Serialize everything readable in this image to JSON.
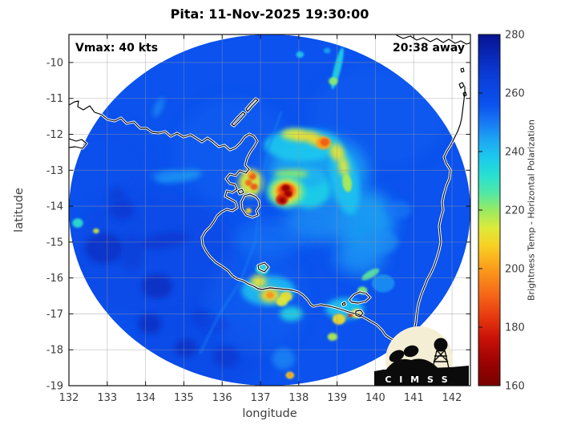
{
  "header": {
    "title": "Pita: 11-Nov-2025 19:30:00"
  },
  "plot": {
    "vmax_label": "Vmax: 40 kts",
    "eta_label": "20:38 away",
    "xlabel": "longitude",
    "ylabel": "latitude"
  },
  "colorbar": {
    "label": "Brightness Temp - Horizontal Polarization",
    "min": 160,
    "max": 280,
    "ticks": [
      160,
      180,
      200,
      220,
      240,
      260,
      280
    ]
  },
  "logo": {
    "text": "C I M S S"
  },
  "chart_data": {
    "type": "heatmap",
    "title": "Pita: 11-Nov-2025 19:30:00",
    "xlabel": "longitude",
    "ylabel": "latitude",
    "units": "K",
    "grid": true,
    "xlim": [
      132.0,
      142.48
    ],
    "ylim": [
      -19.0,
      -9.22
    ],
    "xticks": [
      132,
      133,
      134,
      135,
      136,
      137,
      138,
      139,
      140,
      141,
      142
    ],
    "yticks": [
      -10,
      -11,
      -12,
      -13,
      -14,
      -15,
      -16,
      -17,
      -18,
      -19
    ],
    "colorbar_label": "Brightness Temp - Horizontal Polarization",
    "colormap": [
      [
        160,
        "#7a0101"
      ],
      [
        168,
        "#9c0303"
      ],
      [
        176,
        "#c81007"
      ],
      [
        184,
        "#e93b10"
      ],
      [
        192,
        "#f66d1a"
      ],
      [
        200,
        "#fb9c1a"
      ],
      [
        208,
        "#f8d123"
      ],
      [
        214,
        "#ddea3c"
      ],
      [
        220,
        "#97ea62"
      ],
      [
        226,
        "#4fe8a8"
      ],
      [
        232,
        "#27e0d2"
      ],
      [
        238,
        "#1bc9ee"
      ],
      [
        244,
        "#1da6f3"
      ],
      [
        250,
        "#1878f5"
      ],
      [
        256,
        "#0b52ee"
      ],
      [
        264,
        "#0b41dd"
      ],
      [
        272,
        "#092bbd"
      ],
      [
        280,
        "#06128f"
      ]
    ],
    "base_temp": 256,
    "swath": {
      "center_lon": 137.24,
      "center_lat": -14.11,
      "radius_lon": 5.24,
      "radius_lat": 4.89
    },
    "swath_edge": [
      [
        137.54,
        -11.39
      ],
      [
        137.21,
        -12.39
      ],
      [
        137.04,
        -13.28
      ],
      [
        136.87,
        -14.96
      ],
      [
        136.48,
        -16.08
      ],
      [
        135.89,
        -17.08
      ],
      [
        135.43,
        -18.09
      ]
    ],
    "features": [
      {
        "lo": 134.2,
        "la": -15.4,
        "rx": 2.2,
        "ry": 1.8,
        "t": 262,
        "b": "l",
        "o": 0.5
      },
      {
        "lo": 136.3,
        "la": -12.5,
        "rx": 1.5,
        "ry": 1.5,
        "t": 252,
        "b": "l",
        "o": 0.35
      },
      {
        "lo": 140.1,
        "la": -11.5,
        "rx": 1.8,
        "ry": 1.4,
        "t": 253,
        "b": "l",
        "o": 0.35
      },
      {
        "lo": 135.3,
        "la": -18.1,
        "rx": 1.8,
        "ry": 1.1,
        "t": 262,
        "b": "l",
        "o": 0.45
      },
      {
        "lo": 133.0,
        "la": -12.9,
        "rx": 1.2,
        "ry": 1.2,
        "t": 259,
        "b": "l",
        "o": 0.4
      },
      {
        "lo": 136.9,
        "la": -16.6,
        "rx": 1.3,
        "ry": 1.5,
        "t": 252,
        "b": "l",
        "o": 0.3
      },
      {
        "lo": 132.92,
        "la": -15.18,
        "rx": 0.5,
        "ry": 0.42,
        "t": 270,
        "b": "m",
        "o": 0.85
      },
      {
        "lo": 134.3,
        "la": -16.23,
        "rx": 0.4,
        "ry": 0.34,
        "t": 271,
        "b": "m",
        "o": 0.85
      },
      {
        "lo": 134.11,
        "la": -17.28,
        "rx": 0.3,
        "ry": 0.28,
        "t": 271,
        "b": "m",
        "o": 0.8
      },
      {
        "lo": 135.05,
        "la": -17.95,
        "rx": 0.3,
        "ry": 0.25,
        "t": 270,
        "b": "m",
        "o": 0.8
      },
      {
        "lo": 133.38,
        "la": -14.11,
        "rx": 0.32,
        "ry": 0.27,
        "t": 267,
        "b": "m",
        "o": 0.8
      },
      {
        "lo": 134.49,
        "la": -14.96,
        "rx": 0.65,
        "ry": 0.22,
        "t": 267,
        "b": "m",
        "o": 0.8,
        "rot": -10
      },
      {
        "lo": 136.1,
        "la": -18.2,
        "rx": 0.34,
        "ry": 0.3,
        "t": 267,
        "b": "m",
        "o": 0.8
      },
      {
        "lo": 133.65,
        "la": -15.3,
        "rx": 0.3,
        "ry": 0.5,
        "t": 266,
        "b": "m",
        "o": 0.6
      },
      {
        "lo": 133.26,
        "la": -13.69,
        "rx": 0.22,
        "ry": 0.2,
        "t": 266,
        "b": "m",
        "o": 0.8
      },
      {
        "lo": 135.43,
        "la": -17.08,
        "rx": 0.25,
        "ry": 0.22,
        "t": 266,
        "b": "m",
        "o": 0.7
      },
      {
        "lo": 135.75,
        "la": -17.3,
        "rx": 0.4,
        "ry": 0.25,
        "t": 264,
        "b": "m",
        "o": 0.6
      },
      {
        "lo": 134.87,
        "la": -13.17,
        "rx": 0.6,
        "ry": 0.16,
        "t": 245,
        "b": "m",
        "o": 0.8,
        "rot": -8
      },
      {
        "lo": 134.49,
        "la": -13.13,
        "rx": 0.35,
        "ry": 0.12,
        "t": 248,
        "b": "m",
        "o": 0.7,
        "rot": -8
      },
      {
        "lo": 134.34,
        "la": -11.25,
        "rx": 0.1,
        "ry": 0.3,
        "t": 247,
        "b": "m",
        "o": 0.8,
        "rot": 25
      },
      {
        "lo": 132.23,
        "la": -14.47,
        "rx": 0.14,
        "ry": 0.13,
        "t": 231,
        "b": "s",
        "o": 0.9
      },
      {
        "lo": 132.71,
        "la": -14.69,
        "rx": 0.08,
        "ry": 0.07,
        "t": 214,
        "b": "s",
        "o": 0.9
      },
      {
        "lo": 138.5,
        "la": -13.05,
        "rx": 1.3,
        "ry": 1.0,
        "t": 244,
        "b": "l",
        "o": 0.9
      },
      {
        "lo": 139.7,
        "la": -14.4,
        "rx": 0.8,
        "ry": 0.85,
        "t": 244,
        "b": "l",
        "o": 0.85
      },
      {
        "lo": 139.6,
        "la": -15.4,
        "rx": 0.65,
        "ry": 0.5,
        "t": 246,
        "b": "l",
        "o": 0.8
      },
      {
        "lo": 138.5,
        "la": -14.45,
        "rx": 0.9,
        "ry": 0.55,
        "t": 247,
        "b": "l",
        "o": 0.8
      },
      {
        "lo": 137.2,
        "la": -14.9,
        "rx": 0.9,
        "ry": 0.5,
        "t": 250,
        "b": "l",
        "o": 0.6
      },
      {
        "lo": 138.1,
        "la": -12.3,
        "rx": 1.0,
        "ry": 0.45,
        "t": 238,
        "b": "m",
        "o": 0.9
      },
      {
        "lo": 139.2,
        "la": -13.3,
        "rx": 0.35,
        "ry": 0.95,
        "t": 239,
        "b": "m",
        "o": 0.9,
        "rot": -12
      },
      {
        "lo": 138.25,
        "la": -13.55,
        "rx": 0.55,
        "ry": 0.5,
        "t": 236,
        "b": "m",
        "o": 0.9
      },
      {
        "lo": 138.2,
        "la": -13.2,
        "rx": 0.5,
        "ry": 0.3,
        "t": 242,
        "b": "m",
        "o": 0.9
      },
      {
        "lo": 140.1,
        "la": -15.0,
        "rx": 0.5,
        "ry": 0.35,
        "t": 247,
        "b": "m",
        "o": 0.7
      },
      {
        "lo": 140.6,
        "la": -14.1,
        "rx": 0.35,
        "ry": 0.25,
        "t": 250,
        "b": "m",
        "o": 0.7
      },
      {
        "lo": 140.2,
        "la": -16.15,
        "rx": 0.3,
        "ry": 0.25,
        "t": 246,
        "b": "s",
        "o": 0.8
      },
      {
        "lo": 139.87,
        "la": -15.9,
        "rx": 0.26,
        "ry": 0.1,
        "t": 225,
        "b": "s",
        "o": 0.9,
        "rot": -30
      },
      {
        "lo": 139.66,
        "la": -16.35,
        "rx": 0.13,
        "ry": 0.11,
        "t": 222,
        "b": "s"
      },
      {
        "lo": 137.85,
        "la": -12.0,
        "rx": 0.3,
        "ry": 0.15,
        "t": 214,
        "b": "m"
      },
      {
        "lo": 138.15,
        "la": -12.05,
        "rx": 0.3,
        "ry": 0.14,
        "t": 211,
        "b": "m"
      },
      {
        "lo": 138.45,
        "la": -12.15,
        "rx": 0.25,
        "ry": 0.16,
        "t": 210,
        "b": "m",
        "rot": 20
      },
      {
        "lo": 138.65,
        "la": -12.24,
        "rx": 0.2,
        "ry": 0.18,
        "t": 201,
        "b": "s"
      },
      {
        "lo": 138.68,
        "la": -12.22,
        "rx": 0.12,
        "ry": 0.11,
        "t": 189,
        "b": "s"
      },
      {
        "lo": 139.0,
        "la": -12.5,
        "rx": 0.18,
        "ry": 0.25,
        "t": 212,
        "b": "m",
        "rot": -25
      },
      {
        "lo": 139.17,
        "la": -12.9,
        "rx": 0.13,
        "ry": 0.28,
        "t": 213,
        "b": "m",
        "rot": -10
      },
      {
        "lo": 139.26,
        "la": -13.35,
        "rx": 0.12,
        "ry": 0.26,
        "t": 218,
        "b": "s",
        "rot": -8
      },
      {
        "lo": 137.8,
        "la": -13.1,
        "rx": 0.45,
        "ry": 0.12,
        "t": 220,
        "b": "m",
        "o": 0.9
      },
      {
        "lo": 137.67,
        "la": -13.6,
        "rx": 0.5,
        "ry": 0.45,
        "t": 228,
        "b": "m"
      },
      {
        "lo": 137.67,
        "la": -13.6,
        "rx": 0.38,
        "ry": 0.34,
        "t": 211,
        "b": "m"
      },
      {
        "lo": 137.67,
        "la": -13.58,
        "rx": 0.27,
        "ry": 0.24,
        "t": 198,
        "b": "s"
      },
      {
        "lo": 137.67,
        "la": -13.56,
        "rx": 0.19,
        "ry": 0.17,
        "t": 185,
        "b": "s"
      },
      {
        "lo": 137.66,
        "la": -13.5,
        "rx": 0.11,
        "ry": 0.1,
        "t": 166,
        "b": "s"
      },
      {
        "lo": 137.72,
        "la": -13.66,
        "rx": 0.11,
        "ry": 0.1,
        "t": 168,
        "b": "s"
      },
      {
        "lo": 137.56,
        "la": -13.82,
        "rx": 0.16,
        "ry": 0.15,
        "t": 178,
        "b": "s"
      },
      {
        "lo": 137.57,
        "la": -13.84,
        "rx": 0.08,
        "ry": 0.08,
        "t": 168,
        "b": "s"
      },
      {
        "lo": 136.75,
        "la": -13.35,
        "rx": 0.32,
        "ry": 0.38,
        "t": 214,
        "b": "m"
      },
      {
        "lo": 136.79,
        "la": -13.17,
        "rx": 0.1,
        "ry": 0.1,
        "t": 189,
        "b": "s"
      },
      {
        "lo": 136.69,
        "la": -13.35,
        "rx": 0.09,
        "ry": 0.09,
        "t": 191,
        "b": "s"
      },
      {
        "lo": 136.83,
        "la": -13.46,
        "rx": 0.1,
        "ry": 0.09,
        "t": 188,
        "b": "s"
      },
      {
        "lo": 136.71,
        "la": -13.08,
        "rx": 0.07,
        "ry": 0.07,
        "t": 201,
        "b": "s"
      },
      {
        "lo": 136.69,
        "la": -14.13,
        "rx": 0.08,
        "ry": 0.08,
        "t": 207,
        "b": "s"
      },
      {
        "lo": 137.2,
        "la": -16.35,
        "rx": 0.7,
        "ry": 0.42,
        "t": 241,
        "b": "m"
      },
      {
        "lo": 137.05,
        "la": -15.75,
        "rx": 0.18,
        "ry": 0.15,
        "t": 233,
        "b": "s"
      },
      {
        "lo": 136.95,
        "la": -16.1,
        "rx": 0.2,
        "ry": 0.18,
        "t": 212,
        "b": "m"
      },
      {
        "lo": 137.25,
        "la": -16.48,
        "rx": 0.26,
        "ry": 0.2,
        "t": 209,
        "b": "m"
      },
      {
        "lo": 137.25,
        "la": -16.48,
        "rx": 0.1,
        "ry": 0.09,
        "t": 198,
        "b": "s"
      },
      {
        "lo": 137.67,
        "la": -16.52,
        "rx": 0.16,
        "ry": 0.14,
        "t": 211,
        "b": "s"
      },
      {
        "lo": 137.56,
        "la": -16.66,
        "rx": 0.15,
        "ry": 0.13,
        "t": 213,
        "b": "s"
      },
      {
        "lo": 137.8,
        "la": -17.0,
        "rx": 0.3,
        "ry": 0.2,
        "t": 235,
        "b": "m",
        "o": 0.9
      },
      {
        "lo": 139.2,
        "la": -16.86,
        "rx": 0.5,
        "ry": 0.3,
        "t": 239,
        "b": "m"
      },
      {
        "lo": 139.05,
        "la": -17.15,
        "rx": 0.17,
        "ry": 0.15,
        "t": 210,
        "b": "s"
      },
      {
        "lo": 139.51,
        "la": -16.99,
        "rx": 0.15,
        "ry": 0.13,
        "t": 211,
        "b": "s"
      },
      {
        "lo": 139.34,
        "la": -17.04,
        "rx": 0.06,
        "ry": 0.06,
        "t": 181,
        "b": "s"
      },
      {
        "lo": 138.88,
        "la": -17.64,
        "rx": 0.13,
        "ry": 0.11,
        "t": 218,
        "b": "s"
      },
      {
        "lo": 137.6,
        "la": -18.25,
        "rx": 0.3,
        "ry": 0.3,
        "t": 248,
        "b": "m",
        "o": 0.8
      },
      {
        "lo": 139.01,
        "la": -10.16,
        "rx": 0.09,
        "ry": 0.6,
        "t": 236,
        "b": "s",
        "rot": 14
      },
      {
        "lo": 138.9,
        "la": -10.52,
        "rx": 0.12,
        "ry": 0.11,
        "t": 221,
        "b": "s"
      },
      {
        "lo": 138.03,
        "la": -9.78,
        "rx": 0.1,
        "ry": 0.09,
        "t": 238,
        "b": "s"
      },
      {
        "lo": 138.74,
        "la": -9.67,
        "rx": 0.09,
        "ry": 0.08,
        "t": 242,
        "b": "s",
        "o": 0.8
      },
      {
        "lo": 137.77,
        "la": -18.71,
        "rx": 0.11,
        "ry": 0.1,
        "t": 209,
        "b": "s"
      },
      {
        "lo": 137.77,
        "la": -18.71,
        "rx": 0.05,
        "ry": 0.05,
        "t": 197,
        "b": "s"
      }
    ]
  }
}
